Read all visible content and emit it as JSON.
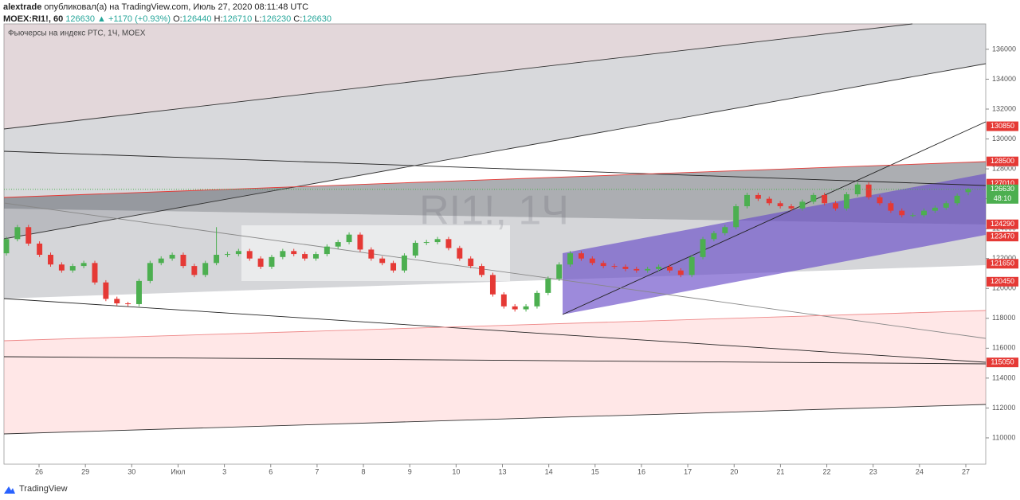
{
  "header": {
    "author": "alextrade",
    "published": "опубликовал(а) на TradingView.com, Июль 27, 2020 08:11:48 UTC",
    "symbol": "MOEX:RI1!, 60",
    "price": 126630,
    "change": "▲ +1170 (+0.93%)",
    "o_label": "O:",
    "o": 126440,
    "h_label": "H:",
    "h": 126710,
    "l_label": "L:",
    "l": 126230,
    "c_label": "C:",
    "c": 126630
  },
  "footer": {
    "brand": "TradingView"
  },
  "chart_data": {
    "type": "candlestick",
    "title": "Фьючерсы на индекс РТС, 1Ч, MOEX",
    "watermark": "RI1!, 1Ч",
    "categories": [
      "26",
      "29",
      "30",
      "Июл",
      "3",
      "6",
      "7",
      "8",
      "9",
      "10",
      "13",
      "14",
      "15",
      "16",
      "17",
      "20",
      "21",
      "22",
      "23",
      "24",
      "27"
    ],
    "up_color": "#4caf50",
    "down_color": "#e53935",
    "ylim": [
      108240,
      137700
    ],
    "yticks": [
      110000,
      112000,
      114000,
      116000,
      118000,
      120000,
      122000,
      124000,
      126000,
      128000,
      130000,
      132000,
      134000,
      136000
    ],
    "price_markers": {
      "values": [
        130850,
        128500,
        127010,
        124290,
        123470,
        121650,
        120450,
        115050
      ],
      "color": "#e53935"
    },
    "last_price": {
      "value": 126630,
      "countdown": "48:10",
      "color": "#4caf50"
    },
    "candles": [
      [
        122350,
        123450,
        122200,
        123300
      ],
      [
        123300,
        124250,
        123150,
        124100
      ],
      [
        124100,
        124250,
        122850,
        123000
      ],
      [
        123000,
        123150,
        122100,
        122250
      ],
      [
        122250,
        122400,
        121450,
        121600
      ],
      [
        121600,
        121750,
        121050,
        121200
      ],
      [
        121200,
        121650,
        121050,
        121500
      ],
      [
        121500,
        121850,
        121350,
        121700
      ],
      [
        121700,
        121850,
        120250,
        120400
      ],
      [
        120400,
        120550,
        119150,
        119300
      ],
      [
        119300,
        119450,
        118850,
        119000
      ],
      [
        119000,
        119100,
        118800,
        118950
      ],
      [
        118950,
        120650,
        118800,
        120500
      ],
      [
        120500,
        121850,
        120350,
        121700
      ],
      [
        121700,
        122150,
        121550,
        122000
      ],
      [
        122000,
        122400,
        121850,
        122250
      ],
      [
        122250,
        122400,
        121350,
        121500
      ],
      [
        121500,
        121650,
        120750,
        120900
      ],
      [
        120900,
        121850,
        120750,
        121700
      ],
      [
        121700,
        124100,
        121550,
        122250
      ],
      [
        122250,
        122450,
        122100,
        122300
      ],
      [
        122300,
        122650,
        122150,
        122500
      ],
      [
        122500,
        122650,
        121850,
        122000
      ],
      [
        122000,
        122150,
        121300,
        121450
      ],
      [
        121450,
        122250,
        121300,
        122100
      ],
      [
        122100,
        122650,
        121950,
        122500
      ],
      [
        122500,
        122650,
        122150,
        122300
      ],
      [
        122300,
        122450,
        121850,
        122000
      ],
      [
        122000,
        122450,
        121850,
        122300
      ],
      [
        122300,
        122950,
        122150,
        122800
      ],
      [
        122800,
        123250,
        122650,
        123100
      ],
      [
        123100,
        123750,
        122950,
        123600
      ],
      [
        123600,
        123750,
        122450,
        122600
      ],
      [
        122600,
        122750,
        121850,
        122000
      ],
      [
        122000,
        122150,
        121550,
        121700
      ],
      [
        121700,
        121850,
        121050,
        121200
      ],
      [
        121200,
        122350,
        121050,
        122200
      ],
      [
        122200,
        123200,
        122050,
        123050
      ],
      [
        123050,
        123250,
        122900,
        123100
      ],
      [
        123100,
        123450,
        122950,
        123300
      ],
      [
        123300,
        123450,
        122550,
        122700
      ],
      [
        122700,
        122850,
        121850,
        122000
      ],
      [
        122000,
        122150,
        121350,
        121500
      ],
      [
        121500,
        121650,
        120750,
        120900
      ],
      [
        120900,
        121050,
        119450,
        119600
      ],
      [
        119600,
        119750,
        118650,
        118800
      ],
      [
        118800,
        118950,
        118450,
        118600
      ],
      [
        118600,
        118950,
        118450,
        118800
      ],
      [
        118800,
        119850,
        118650,
        119700
      ],
      [
        119700,
        120800,
        119550,
        120650
      ],
      [
        120650,
        121750,
        120500,
        121600
      ],
      [
        121600,
        122500,
        121450,
        122350
      ],
      [
        122350,
        122500,
        121850,
        122000
      ],
      [
        122000,
        122150,
        121550,
        121700
      ],
      [
        121700,
        121850,
        121350,
        121500
      ],
      [
        121500,
        121650,
        121300,
        121450
      ],
      [
        121450,
        121600,
        121150,
        121300
      ],
      [
        121300,
        121450,
        121050,
        121200
      ],
      [
        121200,
        121450,
        121050,
        121300
      ],
      [
        121300,
        121600,
        121150,
        121450
      ],
      [
        121450,
        121600,
        121050,
        121200
      ],
      [
        121200,
        121350,
        120750,
        120900
      ],
      [
        120900,
        122250,
        120750,
        122100
      ],
      [
        122100,
        123450,
        121950,
        123300
      ],
      [
        123300,
        123850,
        123150,
        123700
      ],
      [
        123700,
        124250,
        123550,
        124100
      ],
      [
        124100,
        125650,
        123950,
        125500
      ],
      [
        125500,
        126400,
        125350,
        126250
      ],
      [
        126250,
        126400,
        125850,
        126000
      ],
      [
        126000,
        126150,
        125550,
        125700
      ],
      [
        125700,
        125850,
        125350,
        125500
      ],
      [
        125500,
        125650,
        125200,
        125350
      ],
      [
        125350,
        125950,
        125200,
        125800
      ],
      [
        125800,
        126400,
        125650,
        126250
      ],
      [
        126250,
        126400,
        125550,
        125700
      ],
      [
        125700,
        125850,
        125200,
        125350
      ],
      [
        125350,
        126450,
        125200,
        126300
      ],
      [
        126300,
        127100,
        126150,
        126950
      ],
      [
        126950,
        127100,
        125950,
        126100
      ],
      [
        126100,
        126250,
        125550,
        125700
      ],
      [
        125700,
        125850,
        125050,
        125200
      ],
      [
        125200,
        125350,
        124750,
        124900
      ],
      [
        124900,
        125050,
        124750,
        124900
      ],
      [
        124900,
        125350,
        124750,
        125200
      ],
      [
        125200,
        125550,
        125050,
        125400
      ],
      [
        125400,
        125850,
        125250,
        125700
      ],
      [
        125700,
        126350,
        125550,
        126200
      ],
      [
        126440,
        126710,
        126230,
        126630
      ]
    ]
  }
}
